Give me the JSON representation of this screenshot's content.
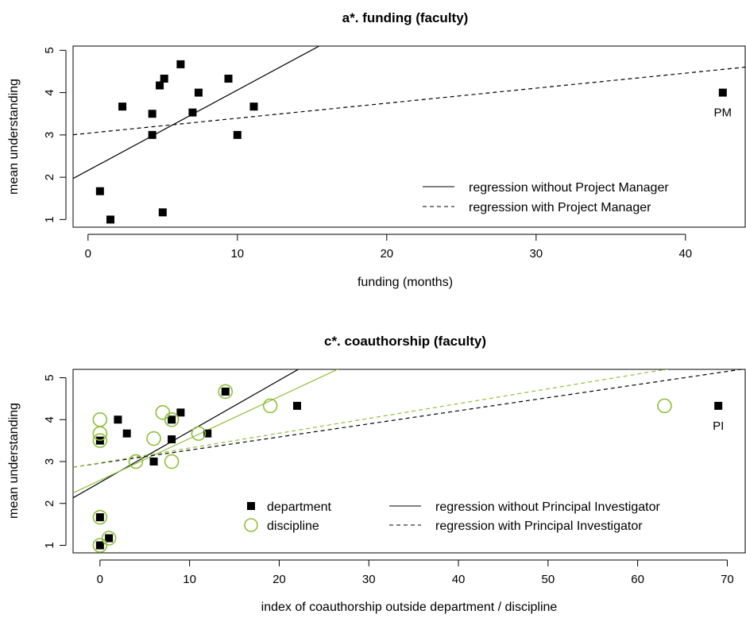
{
  "chart_data": [
    {
      "type": "scatter",
      "title": "a*.  funding (faculty)",
      "xlabel": "funding (months)",
      "ylabel": "mean understanding",
      "xlim": [
        -1,
        44
      ],
      "ylim": [
        0.82,
        5.1
      ],
      "xticks": [
        0,
        10,
        20,
        30,
        40
      ],
      "yticks": [
        1,
        2,
        3,
        4,
        5
      ],
      "series": [
        {
          "marker": "filled-square",
          "color": "#000000",
          "points": [
            {
              "x": 0.8,
              "y": 1.67
            },
            {
              "x": 1.5,
              "y": 1.0
            },
            {
              "x": 2.3,
              "y": 3.67
            },
            {
              "x": 4.3,
              "y": 3.5
            },
            {
              "x": 4.3,
              "y": 3.0
            },
            {
              "x": 4.8,
              "y": 4.17
            },
            {
              "x": 5.1,
              "y": 4.33
            },
            {
              "x": 5.0,
              "y": 1.17
            },
            {
              "x": 6.2,
              "y": 4.67
            },
            {
              "x": 7.0,
              "y": 3.53
            },
            {
              "x": 7.4,
              "y": 4.0
            },
            {
              "x": 9.4,
              "y": 4.33
            },
            {
              "x": 10.0,
              "y": 3.0
            },
            {
              "x": 11.1,
              "y": 3.67
            },
            {
              "x": 42.5,
              "y": 4.0
            }
          ]
        }
      ],
      "annotations": [
        {
          "text": "PM",
          "x": 42.5,
          "y": 4.0
        }
      ],
      "lines": [
        {
          "name": "regression without Project Manager",
          "dash": "solid",
          "color": "#000000",
          "intercept": 2.16,
          "slope": 0.19
        },
        {
          "name": "regression with Project Manager",
          "dash": "dashed",
          "color": "#000000",
          "intercept": 3.04,
          "slope": 0.0355
        }
      ],
      "legend": {
        "position": "bottom-right",
        "entries": [
          "regression without Project Manager",
          "regression with Project Manager"
        ]
      }
    },
    {
      "type": "scatter",
      "title": "c*.  coauthorship (faculty)",
      "xlabel": "index of coauthorship outside department / discipline",
      "ylabel": "mean understanding",
      "xlim": [
        -3,
        72
      ],
      "ylim": [
        0.82,
        5.2
      ],
      "xticks": [
        0,
        10,
        20,
        30,
        40,
        50,
        60,
        70
      ],
      "yticks": [
        1,
        2,
        3,
        4,
        5
      ],
      "series": [
        {
          "name": "department",
          "marker": "filled-square",
          "color": "#000000",
          "points": [
            {
              "x": 0,
              "y": 3.5
            },
            {
              "x": 0,
              "y": 1.67
            },
            {
              "x": 0,
              "y": 1.0
            },
            {
              "x": 1,
              "y": 1.17
            },
            {
              "x": 2,
              "y": 4.0
            },
            {
              "x": 3,
              "y": 3.67
            },
            {
              "x": 6,
              "y": 3.0
            },
            {
              "x": 8,
              "y": 3.53
            },
            {
              "x": 8,
              "y": 4.0
            },
            {
              "x": 9,
              "y": 4.17
            },
            {
              "x": 12,
              "y": 3.67
            },
            {
              "x": 14,
              "y": 4.67
            },
            {
              "x": 22,
              "y": 4.33
            },
            {
              "x": 69,
              "y": 4.33
            }
          ]
        },
        {
          "name": "discipline",
          "marker": "open-circle",
          "color": "#8fbf3a",
          "points": [
            {
              "x": 0,
              "y": 4.0
            },
            {
              "x": 0,
              "y": 3.67
            },
            {
              "x": 0,
              "y": 3.5
            },
            {
              "x": 0,
              "y": 1.67
            },
            {
              "x": 0,
              "y": 1.0
            },
            {
              "x": 1,
              "y": 1.17
            },
            {
              "x": 4,
              "y": 3.0
            },
            {
              "x": 6,
              "y": 3.55
            },
            {
              "x": 7,
              "y": 4.17
            },
            {
              "x": 8,
              "y": 4.0
            },
            {
              "x": 8,
              "y": 3.0
            },
            {
              "x": 11,
              "y": 3.67
            },
            {
              "x": 14,
              "y": 4.67
            },
            {
              "x": 19,
              "y": 4.33
            },
            {
              "x": 63,
              "y": 4.33
            }
          ]
        }
      ],
      "annotations": [
        {
          "text": "PI",
          "x": 69,
          "y": 4.33
        }
      ],
      "lines": [
        {
          "name": "department without Principal Investigator",
          "dash": "solid",
          "color": "#000000",
          "intercept": 2.5,
          "slope": 0.122
        },
        {
          "name": "discipline without Principal Investigator",
          "dash": "solid",
          "color": "#8fbf3a",
          "intercept": 2.55,
          "slope": 0.1
        },
        {
          "name": "department with Principal Investigator",
          "dash": "dashed",
          "color": "#000000",
          "intercept": 2.96,
          "slope": 0.0313
        },
        {
          "name": "discipline with Principal Investigator",
          "dash": "dashed",
          "color": "#8fbf3a",
          "intercept": 2.97,
          "slope": 0.0353
        }
      ],
      "legend": {
        "position": "bottom-center",
        "markers": [
          "department",
          "discipline"
        ],
        "lines": [
          "regression without Principal Investigator",
          "regression with Principal Investigator"
        ]
      }
    }
  ]
}
